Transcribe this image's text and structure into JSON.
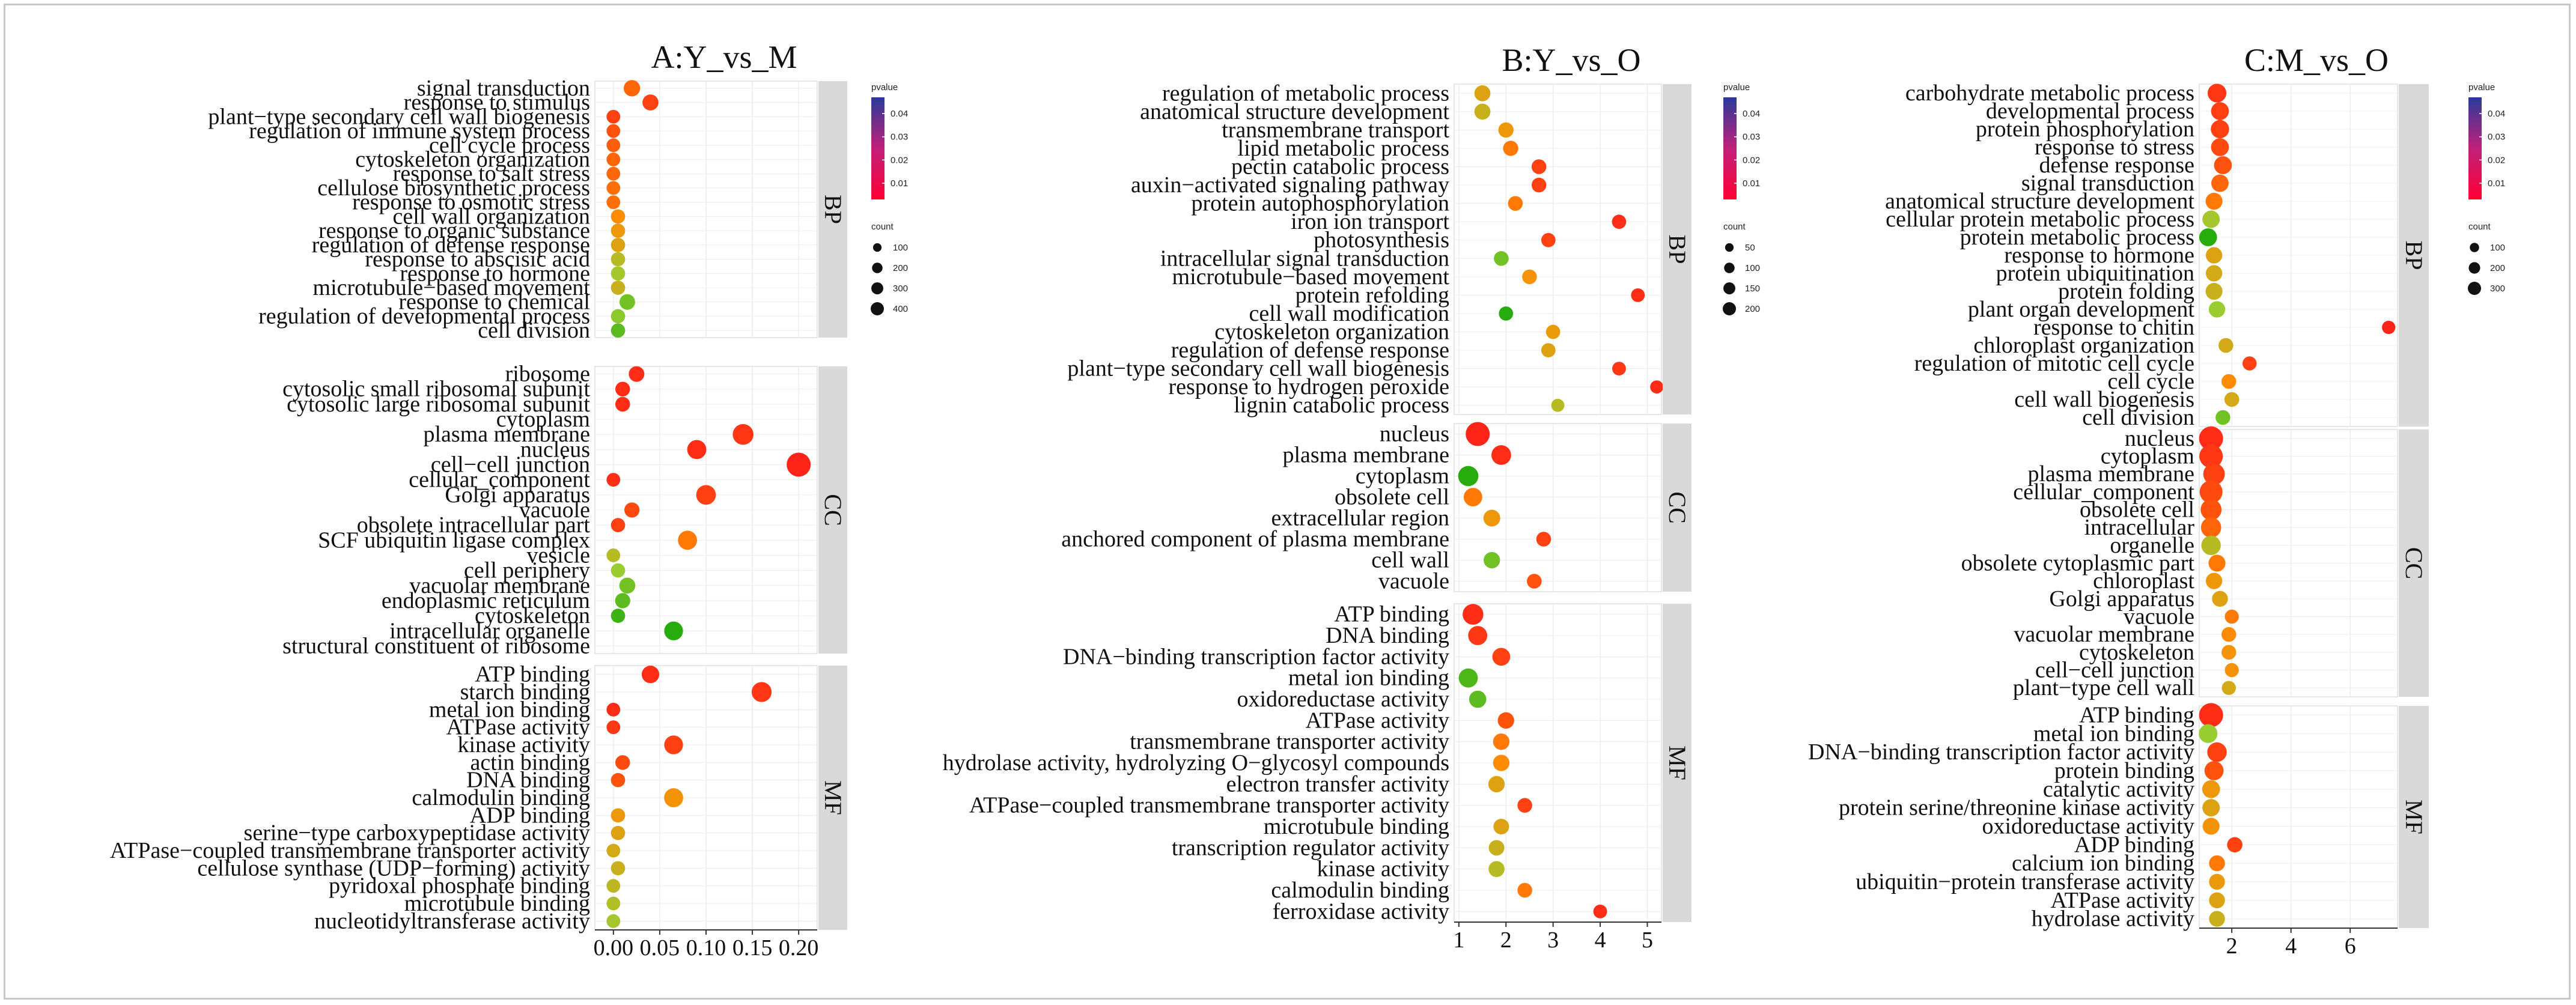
{
  "colors": {
    "low": "#ff1a1a",
    "mid1": "#ff8c00",
    "mid2": "#9acd32",
    "high": "#00a000",
    "scale_low": "#ff0033",
    "scale_high": "#2a3a9b",
    "strip": "#d9d9d9",
    "panel_bg": "#ffffff",
    "grid": "#ececec"
  },
  "legend_labels": {
    "pvalue": "pvalue",
    "count": "count"
  },
  "chart_data": [
    {
      "type": "scatter",
      "title": "A:Y_vs_M",
      "xlim": [
        -0.02,
        0.22
      ],
      "xticks": [
        0.0,
        0.05,
        0.1,
        0.15,
        0.2
      ],
      "xtick_labels": [
        "0.00",
        "0.05",
        "0.10",
        "0.15",
        "0.20"
      ],
      "pvalue_ticks": [
        0.01,
        0.02,
        0.03,
        0.04
      ],
      "pvalue_tick_labels": [
        "0.01",
        "0.02",
        "0.03",
        "0.04"
      ],
      "count_sizes": [
        100,
        200,
        300,
        400
      ],
      "count_labels": [
        "100",
        "200",
        "300",
        "400"
      ],
      "facets": [
        {
          "name": "BP",
          "categories": [
            "signal transduction",
            "response to stimulus",
            "plant−type secondary cell wall biogenesis",
            "regulation of immune system process",
            "cell cycle process",
            "cytoskeleton organization",
            "response to salt stress",
            "cellulose biosynthetic process",
            "response to osmotic stress",
            "cell wall organization",
            "response to organic substance",
            "regulation of defense response",
            "response to abscisic acid",
            "response to hormone",
            "microtubule−based movement",
            "response to chemical",
            "regulation of developmental process",
            "cell division"
          ],
          "x": [
            0.02,
            0.04,
            0.0,
            0.0,
            0.0,
            0.0,
            0.0,
            0.0,
            0.0,
            0.005,
            0.005,
            0.005,
            0.005,
            0.005,
            0.005,
            0.015,
            0.005,
            0.005
          ],
          "count": [
            120,
            110,
            60,
            60,
            60,
            60,
            60,
            60,
            60,
            70,
            70,
            70,
            70,
            70,
            70,
            100,
            70,
            70
          ],
          "pvalue": [
            0.008,
            0.004,
            0.004,
            0.006,
            0.007,
            0.008,
            0.008,
            0.009,
            0.009,
            0.012,
            0.015,
            0.018,
            0.025,
            0.028,
            0.022,
            0.035,
            0.032,
            0.038
          ]
        },
        {
          "name": "CC",
          "categories": [
            "ribosome",
            "cytosolic small ribosomal subunit",
            "cytosolic large ribosomal subunit",
            "cytoplasm",
            "plasma membrane",
            "nucleus",
            "cell−cell junction",
            "cellular_component",
            "Golgi apparatus",
            "vacuole",
            "obsolete intracellular part",
            "SCF ubiquitin ligase complex",
            "vesicle",
            "cell periphery",
            "vacuolar membrane",
            "endoplasmic reticulum",
            "cytoskeleton",
            "intracellular organelle",
            "structural constituent of ribosome"
          ],
          "x": [
            0.025,
            0.01,
            0.01,
            null,
            0.14,
            0.09,
            0.2,
            0.0,
            0.1,
            0.02,
            0.005,
            0.08,
            0.0,
            0.005,
            0.015,
            0.01,
            0.005,
            0.065,
            null
          ],
          "count": [
            100,
            80,
            80,
            null,
            260,
            200,
            400,
            60,
            220,
            90,
            70,
            200,
            60,
            70,
            110,
            90,
            70,
            190,
            null
          ],
          "pvalue": [
            0.002,
            0.002,
            0.002,
            null,
            0.003,
            0.002,
            0.001,
            0.002,
            0.004,
            0.005,
            0.004,
            0.01,
            0.025,
            0.03,
            0.035,
            0.038,
            0.042,
            0.045,
            null
          ]
        },
        {
          "name": "MF",
          "categories": [
            "ATP binding",
            "starch binding",
            "metal ion binding",
            "ATPase activity",
            "kinase activity",
            "actin binding",
            "DNA binding",
            "calmodulin binding",
            "ADP binding",
            "serine−type carboxypeptidase activity",
            "ATPase−coupled transmembrane transporter activity",
            "cellulose synthase (UDP−forming) activity",
            "pyridoxal phosphate binding",
            "microtubule binding",
            "nucleotidyltransferase activity"
          ],
          "x": [
            0.04,
            0.16,
            0.0,
            0.0,
            0.065,
            0.01,
            0.005,
            0.065,
            0.005,
            0.005,
            0.0,
            0.005,
            0.0,
            0.0,
            0.0
          ],
          "count": [
            150,
            230,
            60,
            60,
            190,
            80,
            70,
            200,
            70,
            70,
            60,
            70,
            60,
            60,
            60
          ],
          "pvalue": [
            0.002,
            0.003,
            0.002,
            0.003,
            0.004,
            0.005,
            0.006,
            0.014,
            0.015,
            0.018,
            0.02,
            0.022,
            0.024,
            0.026,
            0.028
          ]
        }
      ]
    },
    {
      "type": "scatter",
      "title": "B:Y_vs_O",
      "xlim": [
        0.9,
        5.3
      ],
      "xticks": [
        1,
        2,
        3,
        4,
        5
      ],
      "xtick_labels": [
        "1",
        "2",
        "3",
        "4",
        "5"
      ],
      "pvalue_ticks": [
        0.01,
        0.02,
        0.03,
        0.04
      ],
      "pvalue_tick_labels": [
        "0.01",
        "0.02",
        "0.03",
        "0.04"
      ],
      "count_sizes": [
        50,
        100,
        150,
        200
      ],
      "count_labels": [
        "50",
        "100",
        "150",
        "200"
      ],
      "facets": [
        {
          "name": "BP",
          "categories": [
            "regulation of metabolic process",
            "anatomical structure development",
            "transmembrane transport",
            "lipid metabolic process",
            "pectin catabolic process",
            "auxin−activated signaling pathway",
            "protein autophosphorylation",
            "iron ion transport",
            "photosynthesis",
            "intracellular signal transduction",
            "microtubule−based movement",
            "protein refolding",
            "cell wall modification",
            "cytoskeleton organization",
            "regulation of defense response",
            "plant−type secondary cell wall biogenesis",
            "response to hydrogen peroxide",
            "lignin catabolic process"
          ],
          "x": [
            1.5,
            1.5,
            2.0,
            2.1,
            2.7,
            2.7,
            2.2,
            4.4,
            2.9,
            1.9,
            2.5,
            4.8,
            2.0,
            3.0,
            2.9,
            4.4,
            5.2,
            3.1
          ],
          "count": [
            55,
            55,
            45,
            45,
            40,
            40,
            40,
            35,
            35,
            40,
            40,
            30,
            35,
            35,
            35,
            30,
            25,
            25
          ],
          "pvalue": [
            0.018,
            0.022,
            0.015,
            0.01,
            0.004,
            0.004,
            0.01,
            0.002,
            0.004,
            0.035,
            0.014,
            0.002,
            0.045,
            0.016,
            0.018,
            0.003,
            0.002,
            0.025
          ]
        },
        {
          "name": "CC",
          "categories": [
            "nucleus",
            "plasma membrane",
            "cytoplasm",
            "obsolete cell",
            "extracellular region",
            "anchored component of plasma membrane",
            "cell wall",
            "vacuole"
          ],
          "x": [
            1.4,
            1.9,
            1.2,
            1.3,
            1.7,
            2.8,
            1.7,
            2.6
          ],
          "count": [
            200,
            110,
            120,
            90,
            65,
            40,
            60,
            40
          ],
          "pvalue": [
            0.001,
            0.002,
            0.045,
            0.01,
            0.015,
            0.004,
            0.035,
            0.006
          ]
        },
        {
          "name": "MF",
          "categories": [
            "ATP binding",
            "DNA binding",
            "DNA−binding transcription factor activity",
            "metal ion binding",
            "oxidoreductase activity",
            "ATPase activity",
            "transmembrane transporter activity",
            "hydrolase activity, hydrolyzing O−glycosyl compounds",
            "electron transfer activity",
            "ATPase−coupled transmembrane transporter activity",
            "microtubule binding",
            "transcription regulator activity",
            "kinase activity",
            "calmodulin binding",
            "ferroxidase activity"
          ],
          "x": [
            1.3,
            1.4,
            1.9,
            1.2,
            1.4,
            2.0,
            1.9,
            1.9,
            1.8,
            2.4,
            1.9,
            1.8,
            1.8,
            2.4,
            4.0
          ],
          "count": [
            130,
            100,
            80,
            100,
            70,
            60,
            60,
            60,
            60,
            40,
            50,
            50,
            55,
            40,
            30
          ],
          "pvalue": [
            0.002,
            0.003,
            0.004,
            0.04,
            0.038,
            0.006,
            0.01,
            0.012,
            0.018,
            0.004,
            0.018,
            0.022,
            0.025,
            0.01,
            0.002
          ]
        }
      ]
    },
    {
      "type": "scatter",
      "title": "C:M_vs_O",
      "xlim": [
        0.9,
        7.6
      ],
      "xticks": [
        2,
        4,
        6
      ],
      "xtick_labels": [
        "2",
        "4",
        "6"
      ],
      "pvalue_ticks": [
        0.01,
        0.02,
        0.03,
        0.04
      ],
      "pvalue_tick_labels": [
        "0.01",
        "0.02",
        "0.03",
        "0.04"
      ],
      "count_sizes": [
        100,
        200,
        300
      ],
      "count_labels": [
        "100",
        "200",
        "300"
      ],
      "facets": [
        {
          "name": "BP",
          "categories": [
            "carbohydrate metabolic process",
            "developmental process",
            "protein phosphorylation",
            "response to stress",
            "defense response",
            "signal transduction",
            "anatomical structure development",
            "cellular protein metabolic process",
            "protein metabolic process",
            "response to hormone",
            "protein ubiquitination",
            "protein folding",
            "plant organ development",
            "response to chitin",
            "chloroplast organization",
            "regulation of mitotic cell cycle",
            "cell cycle",
            "cell wall biogenesis",
            "cell division"
          ],
          "x": [
            1.5,
            1.6,
            1.6,
            1.6,
            1.7,
            1.6,
            1.4,
            1.3,
            1.2,
            1.4,
            1.4,
            1.4,
            1.5,
            7.3,
            1.8,
            2.6,
            1.9,
            2.0,
            1.7
          ],
          "count": [
            140,
            120,
            130,
            120,
            120,
            110,
            100,
            110,
            120,
            90,
            90,
            100,
            90,
            40,
            60,
            50,
            60,
            60,
            60
          ],
          "pvalue": [
            0.003,
            0.004,
            0.004,
            0.005,
            0.006,
            0.008,
            0.01,
            0.028,
            0.045,
            0.018,
            0.02,
            0.022,
            0.03,
            0.001,
            0.02,
            0.004,
            0.012,
            0.02,
            0.035
          ]
        },
        {
          "name": "CC",
          "categories": [
            "nucleus",
            "cytoplasm",
            "plasma membrane",
            "cellular_component",
            "obsolete cell",
            "intracellular",
            "organelle",
            "obsolete cytoplasmic part",
            "chloroplast",
            "Golgi apparatus",
            "vacuole",
            "vacuolar membrane",
            "cytoskeleton",
            "cell−cell junction",
            "plant−type cell wall"
          ],
          "x": [
            1.3,
            1.3,
            1.4,
            1.3,
            1.3,
            1.3,
            1.3,
            1.5,
            1.4,
            1.6,
            2.0,
            1.9,
            1.9,
            2.0,
            1.9
          ],
          "count": [
            300,
            280,
            220,
            260,
            200,
            180,
            160,
            100,
            90,
            80,
            50,
            60,
            60,
            50,
            50
          ],
          "pvalue": [
            0.002,
            0.003,
            0.004,
            0.005,
            0.006,
            0.008,
            0.025,
            0.01,
            0.015,
            0.018,
            0.01,
            0.012,
            0.014,
            0.014,
            0.02
          ]
        },
        {
          "name": "MF",
          "categories": [
            "ATP binding",
            "metal ion binding",
            "DNA−binding transcription factor activity",
            "protein binding",
            "catalytic activity",
            "protein serine/threonine kinase activity",
            "oxidoreductase activity",
            "ADP binding",
            "calcium ion binding",
            "ubiquitin−protein transferase activity",
            "ATPase activity",
            "hydrolase activity"
          ],
          "x": [
            1.3,
            1.2,
            1.5,
            1.4,
            1.3,
            1.3,
            1.3,
            2.1,
            1.5,
            1.5,
            1.5,
            1.5
          ],
          "count": [
            300,
            140,
            160,
            150,
            120,
            110,
            100,
            70,
            80,
            80,
            80,
            80
          ],
          "pvalue": [
            0.002,
            0.03,
            0.004,
            0.006,
            0.015,
            0.018,
            0.014,
            0.004,
            0.01,
            0.016,
            0.018,
            0.022
          ]
        }
      ]
    }
  ]
}
